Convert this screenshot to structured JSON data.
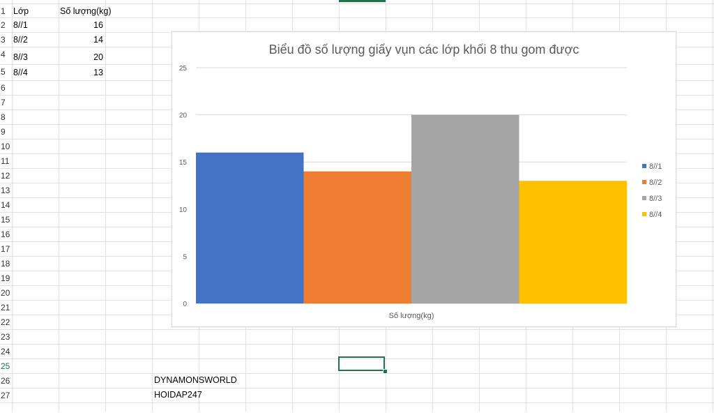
{
  "sheet": {
    "row_numbers": [
      "1",
      "2",
      "3",
      "4",
      "5",
      "6",
      "7",
      "8",
      "9",
      "10",
      "11",
      "12",
      "13",
      "14",
      "15",
      "16",
      "17",
      "18",
      "19",
      "20",
      "21",
      "22",
      "23",
      "24",
      "25",
      "26",
      "27"
    ],
    "headers": {
      "a1": "Lớp",
      "b1": "Số lượng(kg)"
    },
    "rows": [
      {
        "label": "8//1",
        "value": "16"
      },
      {
        "label": "8//2",
        "value": "14"
      },
      {
        "label": "8//3",
        "value": "20"
      },
      {
        "label": "8//4",
        "value": "13"
      }
    ],
    "notes": [
      "DYNAMONSWORLD",
      "HOIDAP247"
    ]
  },
  "colors": {
    "grid": "#e2e2e2",
    "selection": "#217346",
    "series": [
      "#4472c4",
      "#ed7d31",
      "#a5a5a5",
      "#ffc000"
    ]
  },
  "chart_data": {
    "type": "bar",
    "title": "Biểu đồ số lượng giấy vụn các lớp khối 8 thu gom được",
    "xlabel": "Số lượng(kg)",
    "ylabel": "",
    "categories": [
      "Số lượng(kg)"
    ],
    "series": [
      {
        "name": "8//1",
        "values": [
          16
        ]
      },
      {
        "name": "8//2",
        "values": [
          14
        ]
      },
      {
        "name": "8//3",
        "values": [
          20
        ]
      },
      {
        "name": "8//4",
        "values": [
          13
        ]
      }
    ],
    "ylim": [
      0,
      25
    ],
    "yticks": [
      "0",
      "5",
      "10",
      "15",
      "20",
      "25"
    ],
    "grid": true,
    "legend": "right"
  }
}
